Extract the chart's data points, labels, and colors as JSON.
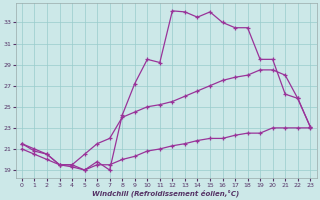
{
  "bg_color": "#cce8e8",
  "grid_color": "#99cccc",
  "line_color": "#993399",
  "xlabel": "Windchill (Refroidissement éolien,°C)",
  "xlim": [
    -0.5,
    23.5
  ],
  "ylim": [
    18.2,
    34.8
  ],
  "xticks": [
    0,
    1,
    2,
    3,
    4,
    5,
    6,
    7,
    8,
    9,
    10,
    11,
    12,
    13,
    14,
    15,
    16,
    17,
    18,
    19,
    20,
    21,
    22,
    23
  ],
  "yticks": [
    19,
    21,
    23,
    25,
    27,
    29,
    31,
    33
  ],
  "curve1_x": [
    0,
    1,
    2,
    3,
    4,
    5,
    6,
    7,
    8,
    9,
    10,
    11,
    12,
    13,
    14,
    15,
    16,
    17,
    18,
    19,
    20,
    21,
    22,
    23
  ],
  "curve1_y": [
    21.5,
    20.8,
    20.5,
    19.5,
    19.5,
    19.0,
    19.8,
    19.0,
    24.2,
    27.2,
    29.5,
    29.2,
    34.1,
    34.0,
    33.5,
    34.0,
    33.0,
    32.5,
    32.5,
    29.5,
    29.5,
    26.2,
    25.8,
    23.1
  ],
  "curve2_x": [
    0,
    1,
    2,
    3,
    4,
    5,
    6,
    7,
    8,
    9,
    10,
    11,
    12,
    13,
    14,
    15,
    16,
    17,
    18,
    19,
    20,
    21,
    22,
    23
  ],
  "curve2_y": [
    21.5,
    21.0,
    20.5,
    19.5,
    19.5,
    20.5,
    21.5,
    22.0,
    24.0,
    24.5,
    25.0,
    25.2,
    25.5,
    26.0,
    26.5,
    27.0,
    27.5,
    27.8,
    28.0,
    28.5,
    28.5,
    28.0,
    25.8,
    23.1
  ],
  "curve3_x": [
    0,
    1,
    2,
    3,
    4,
    5,
    6,
    7,
    8,
    9,
    10,
    11,
    12,
    13,
    14,
    15,
    16,
    17,
    18,
    19,
    20,
    21,
    22,
    23
  ],
  "curve3_y": [
    21.0,
    20.5,
    20.0,
    19.5,
    19.3,
    19.0,
    19.5,
    19.5,
    20.0,
    20.3,
    20.8,
    21.0,
    21.3,
    21.5,
    21.8,
    22.0,
    22.0,
    22.3,
    22.5,
    22.5,
    23.0,
    23.0,
    23.0,
    23.0
  ]
}
